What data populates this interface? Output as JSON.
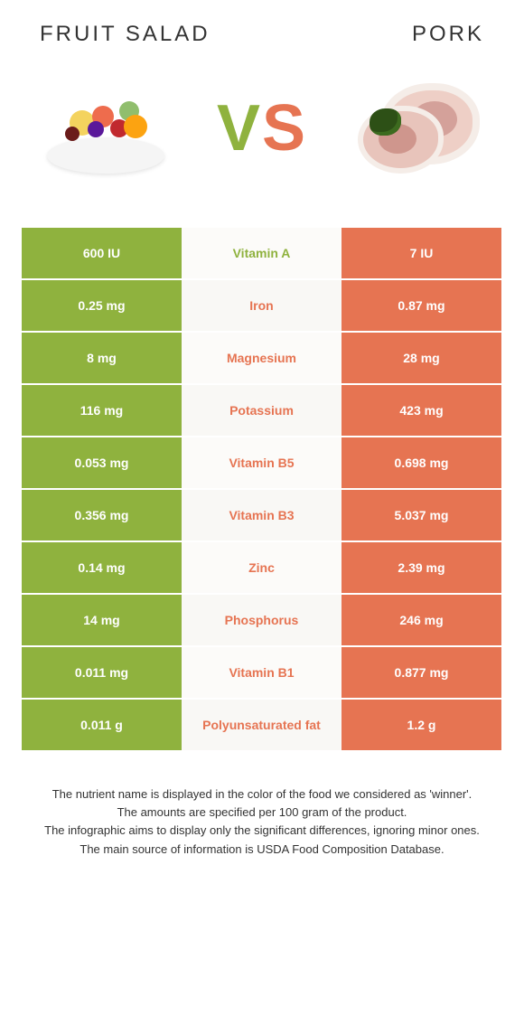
{
  "header": {
    "left_title": "Fruit salad",
    "right_title": "Pork"
  },
  "vs": {
    "v": "V",
    "s": "S"
  },
  "colors": {
    "fruit_bg": "#8fb23e",
    "pork_bg": "#e67452",
    "mid_bg_variant": "#f9f8f5",
    "nutrient_fruit_color": "#8fb23e",
    "nutrient_pork_color": "#e67452"
  },
  "rows": [
    {
      "left": "600 IU",
      "nutrient": "Vitamin A",
      "right": "7 IU",
      "winner": "fruit"
    },
    {
      "left": "0.25 mg",
      "nutrient": "Iron",
      "right": "0.87 mg",
      "winner": "pork"
    },
    {
      "left": "8 mg",
      "nutrient": "Magnesium",
      "right": "28 mg",
      "winner": "pork"
    },
    {
      "left": "116 mg",
      "nutrient": "Potassium",
      "right": "423 mg",
      "winner": "pork"
    },
    {
      "left": "0.053 mg",
      "nutrient": "Vitamin B5",
      "right": "0.698 mg",
      "winner": "pork"
    },
    {
      "left": "0.356 mg",
      "nutrient": "Vitamin B3",
      "right": "5.037 mg",
      "winner": "pork"
    },
    {
      "left": "0.14 mg",
      "nutrient": "Zinc",
      "right": "2.39 mg",
      "winner": "pork"
    },
    {
      "left": "14 mg",
      "nutrient": "Phosphorus",
      "right": "246 mg",
      "winner": "pork"
    },
    {
      "left": "0.011 mg",
      "nutrient": "Vitamin B1",
      "right": "0.877 mg",
      "winner": "pork"
    },
    {
      "left": "0.011 g",
      "nutrient": "Polyunsaturated fat",
      "right": "1.2 g",
      "winner": "pork"
    }
  ],
  "footnotes": [
    "The nutrient name is displayed in the color of the food we considered as 'winner'.",
    "The amounts are specified per 100 gram of the product.",
    "The infographic aims to display only the significant differences, ignoring minor ones.",
    "The main source of information is USDA Food Composition Database."
  ]
}
